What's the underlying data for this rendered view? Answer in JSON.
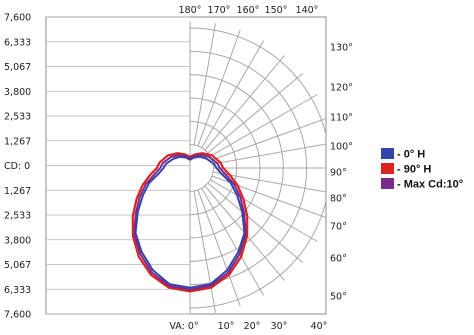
{
  "chart_data": {
    "type": "polar-candela",
    "title": "",
    "max_cd": 7600,
    "left_axis_labels": [
      "7,600",
      "6,333",
      "5,067",
      "3,800",
      "2,533",
      "1,267",
      "CD: 0",
      "1,267",
      "2,533",
      "3,800",
      "5,067",
      "6,333",
      "7,600"
    ],
    "ring_values": [
      1267,
      2533,
      3800,
      5067,
      6333,
      7600
    ],
    "top_angle_labels": [
      "180°",
      "170°",
      "160°",
      "150°",
      "140°"
    ],
    "right_angle_labels": [
      "130°",
      "120°",
      "110°",
      "100°",
      "90°",
      "80°",
      "70°",
      "60°",
      "50°"
    ],
    "bottom_angle_labels": [
      "VA: 0°",
      "10°",
      "20°",
      "30°",
      "40°"
    ],
    "grid": true,
    "legend_position": "right",
    "series": [
      {
        "name": "0° H",
        "color": "#3344aa",
        "angles": [
          180,
          160,
          140,
          120,
          100,
          90,
          80,
          70,
          60,
          50,
          40,
          30,
          20,
          10,
          0
        ],
        "cd": [
          450,
          600,
          800,
          1020,
          1320,
          1440,
          1720,
          2350,
          2950,
          3700,
          4600,
          5250,
          5900,
          6400,
          6500
        ]
      },
      {
        "name": "90° H",
        "color": "#dd2222",
        "angles": [
          180,
          160,
          140,
          120,
          100,
          90,
          80,
          70,
          60,
          50,
          40,
          30,
          20,
          10,
          0
        ],
        "cd": [
          600,
          780,
          1050,
          1380,
          1680,
          1800,
          2200,
          2750,
          3350,
          4050,
          4820,
          5560,
          6180,
          6600,
          6700
        ]
      },
      {
        "name": "Max Cd:10°",
        "color": "#7a2a8a",
        "angles": [
          180,
          160,
          140,
          120,
          100,
          90,
          80,
          70,
          60,
          50,
          40,
          30,
          20,
          10,
          0
        ],
        "cd": [
          540,
          700,
          920,
          1200,
          1500,
          1620,
          1950,
          2550,
          3150,
          3850,
          4700,
          5400,
          6050,
          6500,
          6600
        ]
      }
    ]
  }
}
